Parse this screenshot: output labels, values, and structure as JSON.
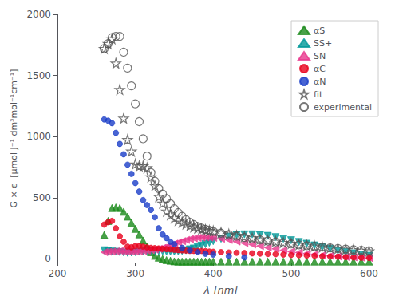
{
  "chart_data": {
    "type": "scatter",
    "xlabel": "λ [nm]",
    "ylabel": "G × ε  [μmol J⁻¹ dm³mol⁻¹cm⁻¹]",
    "xlim": [
      200,
      620
    ],
    "ylim": [
      -30,
      2000
    ],
    "xticks": [
      200,
      300,
      400,
      500,
      600
    ],
    "yticks": [
      0,
      500,
      1000,
      1500,
      2000
    ],
    "grid": false,
    "legend": "upper right",
    "series": [
      {
        "name": "αS",
        "color": "#1a8a1a",
        "marker": "triangle-up",
        "x": [
          260,
          265,
          270,
          275,
          280,
          285,
          290,
          295,
          300,
          305,
          310,
          315,
          320,
          325,
          330,
          335,
          340,
          345,
          350,
          355,
          360,
          365,
          370,
          375,
          380,
          385,
          390,
          395,
          400,
          410,
          420,
          430,
          440,
          450,
          460,
          470,
          480,
          490,
          500,
          510,
          520,
          530,
          540,
          550,
          560,
          570,
          580,
          590,
          600
        ],
        "values": [
          195,
          310,
          415,
          420,
          415,
          385,
          345,
          295,
          245,
          200,
          150,
          100,
          55,
          25,
          10,
          0,
          -10,
          -15,
          -20,
          -22,
          -22,
          -22,
          -22,
          -22,
          -22,
          -22,
          -22,
          -22,
          -22,
          -22,
          -22,
          -22,
          -22,
          -22,
          -22,
          -22,
          -22,
          -22,
          -22,
          -22,
          -22,
          -22,
          -22,
          -22,
          -22,
          -22,
          -22,
          -22,
          -22
        ]
      },
      {
        "name": "SS+",
        "color": "#009999",
        "marker": "triangle-down",
        "x": [
          260,
          265,
          270,
          275,
          280,
          285,
          290,
          295,
          300,
          305,
          310,
          315,
          320,
          325,
          330,
          335,
          340,
          345,
          350,
          355,
          360,
          365,
          370,
          375,
          380,
          385,
          390,
          395,
          400,
          410,
          420,
          430,
          440,
          450,
          460,
          470,
          480,
          490,
          500,
          510,
          520,
          530,
          540,
          550,
          560,
          570,
          580,
          590,
          600
        ],
        "values": [
          70,
          65,
          60,
          58,
          55,
          52,
          50,
          52,
          55,
          58,
          60,
          62,
          65,
          65,
          65,
          62,
          60,
          60,
          60,
          62,
          65,
          70,
          78,
          85,
          95,
          108,
          120,
          132,
          145,
          165,
          182,
          195,
          200,
          200,
          195,
          188,
          178,
          165,
          152,
          138,
          124,
          110,
          95,
          82,
          68,
          55,
          45,
          35,
          25
        ]
      },
      {
        "name": "SN",
        "color": "#e8368c",
        "marker": "triangle-left",
        "x": [
          260,
          265,
          270,
          275,
          280,
          285,
          290,
          295,
          300,
          305,
          310,
          315,
          320,
          325,
          330,
          335,
          340,
          345,
          350,
          355,
          360,
          365,
          370,
          375,
          380,
          385,
          390,
          395,
          400,
          410,
          420,
          430,
          440,
          450,
          460,
          470,
          480,
          490,
          500,
          510,
          520,
          530,
          540,
          550,
          560,
          570,
          580,
          590,
          600
        ],
        "values": [
          55,
          58,
          60,
          62,
          65,
          62,
          60,
          60,
          60,
          62,
          65,
          68,
          72,
          76,
          82,
          90,
          100,
          112,
          125,
          135,
          145,
          155,
          162,
          168,
          172,
          175,
          175,
          174,
          172,
          165,
          155,
          142,
          130,
          118,
          105,
          93,
          82,
          70,
          60,
          52,
          44,
          37,
          30,
          25,
          20,
          16,
          13,
          10,
          8
        ]
      },
      {
        "name": "αC",
        "color": "#e8001c",
        "marker": "circle",
        "x": [
          260,
          265,
          270,
          275,
          280,
          285,
          290,
          295,
          300,
          305,
          310,
          315,
          320,
          325,
          330,
          335,
          340,
          345,
          350,
          355,
          360,
          365,
          370,
          375,
          380,
          385,
          390,
          395,
          400,
          410,
          420,
          430,
          440,
          450,
          460,
          470,
          480,
          490,
          500,
          510,
          520,
          530,
          540,
          550,
          560,
          570,
          580,
          590,
          600
        ],
        "values": [
          280,
          300,
          310,
          250,
          185,
          140,
          100,
          95,
          105,
          105,
          100,
          95,
          90,
          88,
          85,
          82,
          80,
          78,
          75,
          72,
          70,
          68,
          65,
          65,
          65,
          65,
          63,
          60,
          58,
          55,
          52,
          50,
          48,
          45,
          43,
          40,
          38,
          35,
          32,
          30,
          28,
          25,
          22,
          20,
          18,
          15,
          12,
          10,
          8
        ]
      },
      {
        "name": "αN",
        "color": "#1a3dc8",
        "marker": "circle",
        "x": [
          260,
          265,
          270,
          275,
          280,
          285,
          290,
          295,
          300,
          305,
          310,
          315,
          320,
          325,
          330,
          335,
          340,
          345,
          350,
          360,
          370,
          380,
          390,
          400,
          420,
          440
        ],
        "values": [
          1140,
          1130,
          1110,
          1030,
          940,
          855,
          770,
          695,
          620,
          550,
          480,
          440,
          400,
          340,
          250,
          200,
          170,
          140,
          120,
          90,
          70,
          55,
          42,
          35,
          22,
          12
        ]
      },
      {
        "name": "fit",
        "color": "#555555",
        "marker": "open-star",
        "x": [
          260,
          265,
          270,
          275,
          280,
          285,
          290,
          295,
          300,
          305,
          310,
          315,
          320,
          325,
          330,
          335,
          340,
          345,
          350,
          355,
          360,
          365,
          370,
          375,
          380,
          385,
          390,
          395,
          400,
          410,
          420,
          430,
          440,
          450,
          460,
          470,
          480,
          490,
          500,
          510,
          520,
          530,
          540,
          550,
          560,
          570,
          580,
          590,
          600
        ],
        "values": [
          1720,
          1760,
          1800,
          1600,
          1385,
          1150,
          975,
          880,
          775,
          760,
          760,
          745,
          670,
          600,
          510,
          455,
          390,
          360,
          335,
          315,
          300,
          285,
          272,
          262,
          252,
          244,
          238,
          232,
          228,
          215,
          202,
          192,
          182,
          172,
          162,
          152,
          143,
          134,
          126,
          118,
          111,
          104,
          97,
          91,
          85,
          79,
          74,
          70,
          65
        ]
      },
      {
        "name": "experimental",
        "color": "#555555",
        "marker": "open-circle",
        "x": [
          260,
          265,
          270,
          275,
          280,
          285,
          290,
          295,
          300,
          305,
          310,
          315,
          320,
          325,
          330,
          335,
          340,
          345,
          350,
          355,
          360,
          365,
          370,
          375,
          380,
          385,
          390,
          395,
          400,
          410,
          420,
          430,
          440,
          450,
          460,
          470,
          480,
          490,
          500,
          510,
          520,
          530,
          540,
          550,
          560,
          570,
          580,
          590,
          600
        ],
        "values": [
          1720,
          1760,
          1810,
          1820,
          1820,
          1690,
          1560,
          1415,
          1268,
          1122,
          982,
          840,
          705,
          635,
          575,
          530,
          492,
          450,
          410,
          378,
          348,
          320,
          298,
          280,
          265,
          252,
          242,
          234,
          225,
          210,
          197,
          186,
          175,
          165,
          155,
          146,
          138,
          130,
          122,
          115,
          108,
          102,
          96,
          90,
          85,
          80,
          75,
          70,
          65
        ]
      }
    ]
  }
}
